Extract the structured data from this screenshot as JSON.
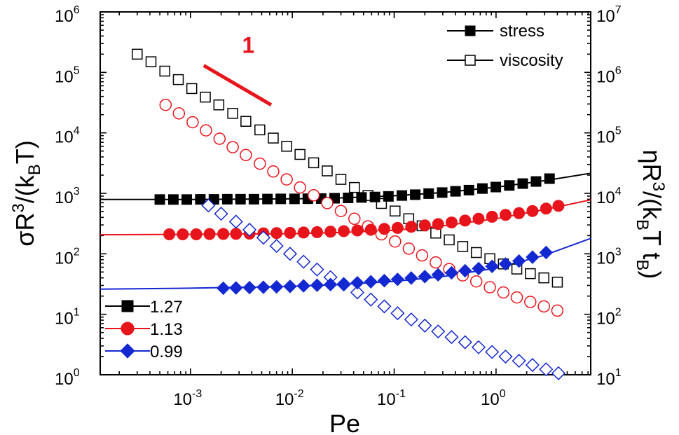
{
  "chart_data": {
    "type": "scatter",
    "xscale": "log",
    "xlabel": "Pe",
    "ylabel_left": {
      "base": "σR",
      "sup": "3",
      "rest": "/(k",
      "sub": "B",
      "end": "T)"
    },
    "ylabel_right": {
      "base": "ηR",
      "sup": "3",
      "rest": "/(k",
      "sub": "B",
      "mid": "T t",
      "sub2": "B",
      "end": ")"
    },
    "xlim": [
      0.00013,
      8.5
    ],
    "ylim_left": [
      1,
      1000000
    ],
    "ylim_right": [
      10,
      10000000
    ],
    "x_ticks": [
      {
        "value": 0.001,
        "base": "10",
        "exp": "-3"
      },
      {
        "value": 0.01,
        "base": "10",
        "exp": "-2"
      },
      {
        "value": 0.1,
        "base": "10",
        "exp": "-1"
      },
      {
        "value": 1,
        "base": "10",
        "exp": "0"
      }
    ],
    "y_ticks_left": [
      {
        "value": 1,
        "base": "10",
        "exp": "0"
      },
      {
        "value": 10,
        "base": "10",
        "exp": "1"
      },
      {
        "value": 100,
        "base": "10",
        "exp": "2"
      },
      {
        "value": 1000,
        "base": "10",
        "exp": "3"
      },
      {
        "value": 10000,
        "base": "10",
        "exp": "4"
      },
      {
        "value": 100000,
        "base": "10",
        "exp": "5"
      },
      {
        "value": 1000000,
        "base": "10",
        "exp": "6"
      }
    ],
    "y_ticks_right": [
      {
        "value": 10,
        "base": "10",
        "exp": "1"
      },
      {
        "value": 100,
        "base": "10",
        "exp": "2"
      },
      {
        "value": 1000,
        "base": "10",
        "exp": "3"
      },
      {
        "value": 10000,
        "base": "10",
        "exp": "4"
      },
      {
        "value": 100000,
        "base": "10",
        "exp": "5"
      },
      {
        "value": 1000000,
        "base": "10",
        "exp": "6"
      },
      {
        "value": 10000000,
        "base": "10",
        "exp": "7"
      }
    ],
    "legend_type": {
      "placement": "top-right",
      "entries": [
        {
          "label": "stress",
          "filled": true
        },
        {
          "label": "viscosity",
          "filled": false
        }
      ]
    },
    "legend_series": {
      "placement": "bottom-left",
      "entries": [
        {
          "label": "1.27",
          "color": "#000000",
          "marker": "square"
        },
        {
          "label": "1.13",
          "color": "#e8141b",
          "marker": "circle"
        },
        {
          "label": "0.99",
          "color": "#1428d2",
          "marker": "diamond"
        }
      ]
    },
    "slope_annotation": {
      "label": "1",
      "color": "#e8141b",
      "x": [
        0.00135,
        0.0062
      ],
      "y": [
        130000,
        29000
      ],
      "label_x": 0.0037,
      "label_y": 210000
    },
    "series": [
      {
        "name": "1.27",
        "color": "#000000",
        "marker": "square",
        "fit": {
          "x": [
            0.00013,
            0.001,
            0.01,
            0.03,
            0.1,
            0.3,
            1,
            3,
            8.5
          ],
          "y": [
            790,
            790,
            810,
            840,
            910,
            1030,
            1260,
            1620,
            2150
          ]
        },
        "stress": {
          "x": [
            0.0005,
            0.00068,
            0.00092,
            0.00125,
            0.0017,
            0.0023,
            0.0031,
            0.0042,
            0.0057,
            0.0077,
            0.0105,
            0.0142,
            0.0192,
            0.026,
            0.0353,
            0.0478,
            0.0648,
            0.0878,
            0.119,
            0.161,
            0.218,
            0.296,
            0.4,
            0.542,
            0.735,
            0.995,
            1.35,
            1.83,
            2.47,
            3.35
          ],
          "y": [
            790,
            790,
            790,
            795,
            795,
            800,
            800,
            800,
            805,
            810,
            810,
            815,
            820,
            830,
            840,
            855,
            870,
            890,
            920,
            950,
            990,
            1030,
            1080,
            1130,
            1200,
            1270,
            1350,
            1450,
            1570,
            1750
          ]
        },
        "viscosity": {
          "x": [
            0.0003,
            0.00041,
            0.00056,
            0.00076,
            0.00103,
            0.0014,
            0.0019,
            0.0026,
            0.0035,
            0.0048,
            0.0065,
            0.0088,
            0.0119,
            0.0162,
            0.022,
            0.03,
            0.0407,
            0.0553,
            0.075,
            0.102,
            0.139,
            0.188,
            0.256,
            0.347,
            0.471,
            0.64,
            0.87,
            1.18,
            1.6,
            2.17,
            2.95,
            4.0
          ],
          "y": [
            2000000,
            1500000,
            1050000,
            760000,
            540000,
            390000,
            290000,
            210000,
            155000,
            112000,
            82000,
            60000,
            44000,
            32000,
            23500,
            17000,
            12500,
            9200,
            6800,
            5100,
            3800,
            2900,
            2200,
            1700,
            1320,
            1050,
            830,
            680,
            560,
            470,
            400,
            340
          ]
        }
      },
      {
        "name": "1.13",
        "color": "#e8141b",
        "marker": "circle",
        "fit": {
          "x": [
            0.00013,
            0.001,
            0.01,
            0.03,
            0.1,
            0.3,
            1,
            3,
            8.5
          ],
          "y": [
            207,
            210,
            215,
            225,
            245,
            290,
            380,
            540,
            780
          ]
        },
        "stress": {
          "x": [
            0.00062,
            0.00084,
            0.00114,
            0.00154,
            0.0021,
            0.0028,
            0.0038,
            0.0052,
            0.007,
            0.0095,
            0.0129,
            0.0175,
            0.0237,
            0.032,
            0.0435,
            0.059,
            0.08,
            0.108,
            0.147,
            0.2,
            0.27,
            0.366,
            0.497,
            0.674,
            0.914,
            1.24,
            1.68,
            2.28,
            3.1,
            4.1
          ],
          "y": [
            210,
            210,
            210,
            212,
            213,
            214,
            216,
            218,
            220,
            222,
            225,
            228,
            232,
            237,
            243,
            250,
            258,
            268,
            280,
            295,
            310,
            330,
            355,
            380,
            410,
            440,
            470,
            510,
            560,
            620
          ]
        },
        "viscosity": {
          "x": [
            0.00057,
            0.00077,
            0.00105,
            0.00142,
            0.00193,
            0.0026,
            0.0035,
            0.0048,
            0.0065,
            0.0088,
            0.0119,
            0.0162,
            0.022,
            0.03,
            0.0407,
            0.0553,
            0.075,
            0.102,
            0.139,
            0.188,
            0.256,
            0.347,
            0.471,
            0.64,
            0.87,
            1.18,
            1.6,
            2.17,
            2.95,
            4.0
          ],
          "y": [
            290000,
            210000,
            150000,
            110000,
            80000,
            58000,
            43000,
            31000,
            23000,
            17000,
            12500,
            9300,
            6900,
            5100,
            3800,
            2850,
            2100,
            1600,
            1220,
            940,
            720,
            560,
            440,
            350,
            280,
            230,
            190,
            160,
            135,
            115
          ]
        }
      },
      {
        "name": "0.99",
        "color": "#1428d2",
        "marker": "diamond",
        "fit": {
          "x": [
            0.00013,
            0.001,
            0.01,
            0.03,
            0.1,
            0.3,
            1,
            3,
            8.5
          ],
          "y": [
            26,
            27,
            29,
            31,
            35,
            42,
            58,
            95,
            180
          ]
        },
        "stress": {
          "x": [
            0.0021,
            0.0028,
            0.0038,
            0.0052,
            0.007,
            0.0095,
            0.0129,
            0.0175,
            0.0237,
            0.032,
            0.0435,
            0.059,
            0.08,
            0.108,
            0.147,
            0.2,
            0.27,
            0.366,
            0.497,
            0.674,
            0.914,
            1.24,
            1.68,
            2.28,
            3.1
          ],
          "y": [
            27,
            27.3,
            27.6,
            28,
            28.4,
            28.9,
            29.5,
            30.2,
            31,
            32,
            33.2,
            34.5,
            36,
            37.8,
            39.8,
            42,
            45,
            48.5,
            52.5,
            57,
            62,
            68,
            76,
            88,
            105
          ]
        },
        "viscosity": {
          "x": [
            0.0015,
            0.002,
            0.0028,
            0.0038,
            0.0052,
            0.007,
            0.0095,
            0.0129,
            0.0175,
            0.0237,
            0.032,
            0.0435,
            0.059,
            0.08,
            0.108,
            0.147,
            0.2,
            0.27,
            0.366,
            0.497,
            0.674,
            0.914,
            1.24,
            1.68,
            2.28,
            3.1,
            4.1
          ],
          "y": [
            6300,
            4600,
            3400,
            2500,
            1850,
            1350,
            1000,
            740,
            550,
            410,
            310,
            230,
            175,
            135,
            104,
            82,
            65,
            52,
            42,
            34.5,
            28.5,
            23.8,
            20,
            17,
            14.5,
            12.3,
            10.6
          ]
        }
      }
    ]
  }
}
